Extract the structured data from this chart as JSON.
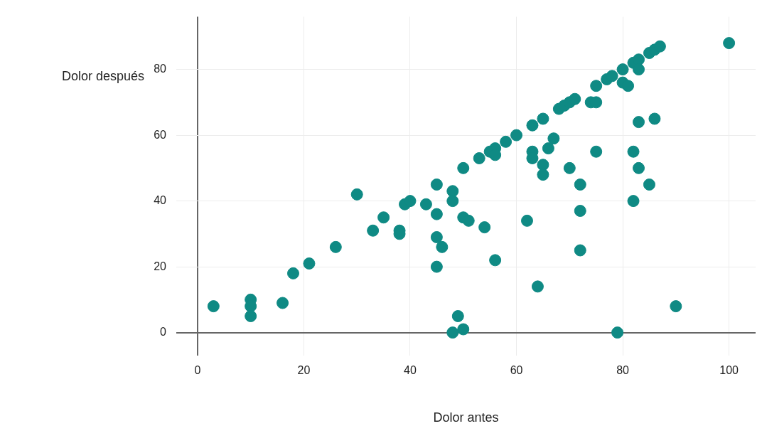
{
  "chart_data": {
    "type": "scatter",
    "xlabel": "Dolor antes",
    "ylabel": "Dolor después",
    "xlim": [
      -4,
      105
    ],
    "ylim": [
      -7,
      96
    ],
    "xticks": [
      0,
      20,
      40,
      60,
      80,
      100
    ],
    "yticks": [
      0,
      20,
      40,
      60,
      80
    ],
    "grid": true,
    "marker": "circle",
    "legend": false,
    "series": [
      {
        "color": "#0f8a84",
        "x": [
          3,
          10,
          10,
          10,
          16,
          18,
          21,
          26,
          30,
          33,
          35,
          38,
          38,
          39,
          40,
          43,
          45,
          45,
          45,
          45,
          46,
          48,
          48,
          48,
          49,
          50,
          50,
          50,
          51,
          53,
          54,
          55,
          56,
          56,
          56,
          58,
          60,
          62,
          63,
          63,
          63,
          64,
          65,
          65,
          65,
          66,
          67,
          68,
          69,
          70,
          70,
          71,
          72,
          72,
          72,
          74,
          75,
          75,
          75,
          77,
          78,
          79,
          80,
          80,
          81,
          82,
          82,
          82,
          83,
          83,
          83,
          83,
          85,
          85,
          86,
          86,
          87,
          90,
          100
        ],
        "values": [
          8,
          10,
          8,
          5,
          9,
          18,
          21,
          26,
          42,
          31,
          35,
          31,
          30,
          39,
          40,
          39,
          45,
          36,
          29,
          20,
          26,
          43,
          40,
          0,
          5,
          1,
          35,
          50,
          34,
          53,
          32,
          55,
          56,
          54,
          22,
          58,
          60,
          34,
          63,
          55,
          53,
          14,
          65,
          51,
          48,
          56,
          59,
          68,
          69,
          70,
          50,
          71,
          45,
          37,
          25,
          70,
          70,
          75,
          55,
          77,
          78,
          0,
          80,
          76,
          75,
          82,
          55,
          40,
          83,
          80,
          64,
          50,
          85,
          45,
          86,
          65,
          87,
          8,
          88
        ]
      }
    ]
  }
}
